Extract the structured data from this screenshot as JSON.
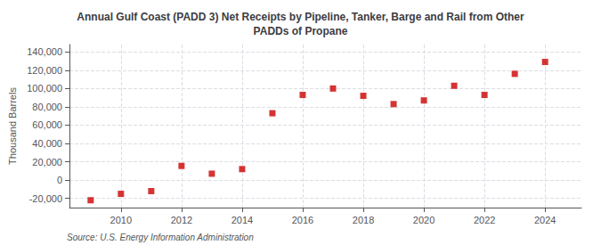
{
  "chart_data": {
    "type": "scatter",
    "title": "Annual Gulf Coast (PADD 3) Net Receipts by Pipeline, Tanker, Barge and Rail from Other\nPADDs of Propane",
    "ylabel": "Thousand Barrels",
    "annotations": [
      "Source: U.S. Energy Information Administration"
    ],
    "x": [
      2009,
      2010,
      2011,
      2012,
      2013,
      2014,
      2015,
      2016,
      2017,
      2018,
      2019,
      2020,
      2021,
      2022,
      2023,
      2024
    ],
    "values": [
      -22000,
      -15000,
      -12000,
      15500,
      7000,
      12000,
      73000,
      93000,
      100000,
      92000,
      83000,
      87000,
      103000,
      93000,
      116000,
      129000
    ],
    "color": "#cc0000",
    "marker": "square",
    "xlim": [
      2008.3,
      2025.2
    ],
    "xticks": [
      2010,
      2012,
      2014,
      2016,
      2018,
      2020,
      2022,
      2024
    ],
    "ylim": [
      -30000,
      148000
    ],
    "yticks": [
      {
        "value": -20000,
        "label": "-20,000"
      },
      0,
      {
        "value": 20000,
        "label": "20,000"
      },
      {
        "value": 40000,
        "label": "40,000"
      },
      {
        "value": 60000,
        "label": "60,000"
      },
      {
        "value": 80000,
        "label": "80,000"
      },
      {
        "value": 100000,
        "label": "100,000"
      },
      {
        "value": 120000,
        "label": "120,000"
      },
      {
        "value": 140000,
        "label": "140,000"
      }
    ],
    "grid": true
  }
}
